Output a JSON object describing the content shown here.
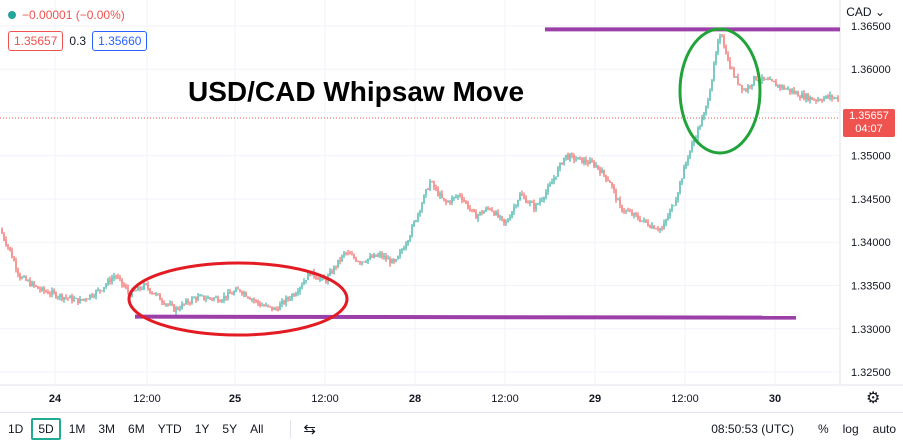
{
  "readout": {
    "change": "−0.00001 (−0.00%)"
  },
  "quote": {
    "sell": "1.35657",
    "spread": "0.3",
    "buy": "1.35660"
  },
  "currency_label": "CAD",
  "last_price": {
    "value": "1.35657",
    "countdown": "04:07"
  },
  "colors": {
    "up": "#26a69a",
    "down": "#ef5350",
    "purple": "#9c3fa8",
    "red_ellipse": "#e31b23",
    "green_ellipse": "#22a33a"
  },
  "chart_data": {
    "type": "candlestick",
    "title": "USD/CAD Whipsaw Move",
    "x_ticks": [
      "24",
      "12:00",
      "25",
      "12:00",
      "28",
      "12:00",
      "29",
      "12:00",
      "30"
    ],
    "y_ticks": [
      "1.36500",
      "1.36000",
      "1.35500",
      "1.35000",
      "1.34500",
      "1.34000",
      "1.33500",
      "1.33000",
      "1.32500"
    ],
    "ylim": [
      1.3235,
      1.368
    ],
    "approx_path": [
      [
        0,
        1.3415
      ],
      [
        10,
        1.339
      ],
      [
        20,
        1.336
      ],
      [
        40,
        1.3345
      ],
      [
        60,
        1.3338
      ],
      [
        80,
        1.3332
      ],
      [
        100,
        1.3345
      ],
      [
        115,
        1.3362
      ],
      [
        130,
        1.334
      ],
      [
        145,
        1.335
      ],
      [
        160,
        1.3335
      ],
      [
        175,
        1.3322
      ],
      [
        195,
        1.3336
      ],
      [
        220,
        1.3335
      ],
      [
        240,
        1.3345
      ],
      [
        260,
        1.3328
      ],
      [
        275,
        1.3322
      ],
      [
        295,
        1.3342
      ],
      [
        310,
        1.3365
      ],
      [
        325,
        1.3355
      ],
      [
        345,
        1.3388
      ],
      [
        360,
        1.3378
      ],
      [
        380,
        1.3385
      ],
      [
        395,
        1.3375
      ],
      [
        410,
        1.341
      ],
      [
        420,
        1.344
      ],
      [
        430,
        1.347
      ],
      [
        445,
        1.3445
      ],
      [
        460,
        1.3455
      ],
      [
        475,
        1.343
      ],
      [
        490,
        1.344
      ],
      [
        505,
        1.342
      ],
      [
        520,
        1.3455
      ],
      [
        535,
        1.344
      ],
      [
        550,
        1.3465
      ],
      [
        565,
        1.35
      ],
      [
        580,
        1.3495
      ],
      [
        595,
        1.349
      ],
      [
        610,
        1.347
      ],
      [
        620,
        1.344
      ],
      [
        635,
        1.343
      ],
      [
        650,
        1.342
      ],
      [
        662,
        1.3415
      ],
      [
        675,
        1.3448
      ],
      [
        688,
        1.35
      ],
      [
        698,
        1.353
      ],
      [
        705,
        1.355
      ],
      [
        712,
        1.359
      ],
      [
        718,
        1.363
      ],
      [
        722,
        1.364
      ],
      [
        728,
        1.361
      ],
      [
        735,
        1.359
      ],
      [
        745,
        1.3575
      ],
      [
        755,
        1.359
      ],
      [
        770,
        1.3585
      ],
      [
        785,
        1.3578
      ],
      [
        800,
        1.357
      ],
      [
        815,
        1.3565
      ],
      [
        830,
        1.3568
      ],
      [
        838,
        1.3566
      ]
    ],
    "support_level": 1.3314,
    "resistance_level": 1.3646
  },
  "toolbar": {
    "timeframes": [
      "1D",
      "5D",
      "1M",
      "3M",
      "6M",
      "YTD",
      "1Y",
      "5Y",
      "All"
    ],
    "active": "5D",
    "clock": "08:50:53 (UTC)",
    "percent": "%",
    "log": "log",
    "auto": "auto"
  }
}
